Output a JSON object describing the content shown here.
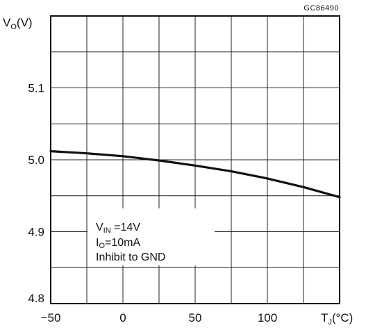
{
  "chart_data": {
    "type": "line",
    "figure_code": "GC86490",
    "ylabel_main": "V",
    "ylabel_sub": "O",
    "ylabel_unit": "(V)",
    "xlabel_main": "T",
    "xlabel_sub": "J",
    "xlabel_unit": "(°C)",
    "xlim": [
      -50,
      150
    ],
    "ylim": [
      4.8,
      5.2
    ],
    "grid": true,
    "x_ticks": [
      {
        "value": -50,
        "label": "−50"
      },
      {
        "value": 0,
        "label": "0"
      },
      {
        "value": 50,
        "label": "50"
      },
      {
        "value": 100,
        "label": "100"
      }
    ],
    "y_ticks": [
      {
        "value": 4.8,
        "label": "4.8"
      },
      {
        "value": 4.9,
        "label": "4.9"
      },
      {
        "value": 5.0,
        "label": "5.0"
      },
      {
        "value": 5.1,
        "label": "5.1"
      }
    ],
    "series": [
      {
        "x": [
          -50,
          -25,
          0,
          25,
          50,
          75,
          100,
          125,
          150
        ],
        "y": [
          5.012,
          5.009,
          5.005,
          4.999,
          4.992,
          4.984,
          4.974,
          4.962,
          4.948
        ]
      }
    ],
    "annotation": {
      "line1_main": "V",
      "line1_sub": "IN",
      "line1_rest": " =14V",
      "line2_main": "I",
      "line2_sub": "O",
      "line2_rest": "=10mA",
      "line3": "Inhibit  to  GND"
    }
  }
}
